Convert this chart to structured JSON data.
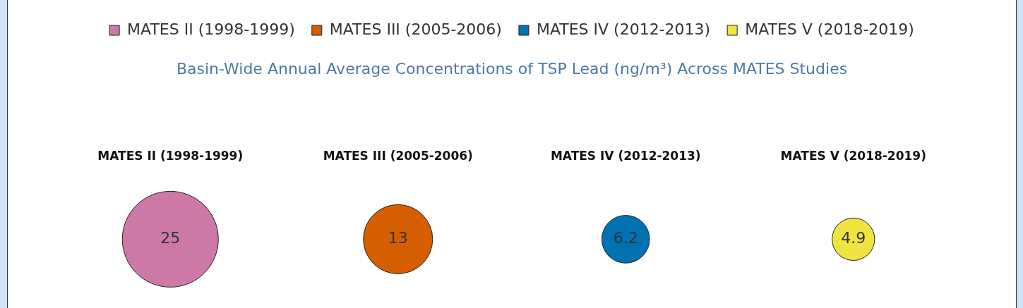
{
  "chart_data": {
    "type": "other",
    "title": "Basin-Wide Annual Average Concentrations of TSP Lead (ng/m³) Across MATES Studies",
    "categories": [
      "MATES II (1998-1999)",
      "MATES III (2005-2006)",
      "MATES IV (2012-2013)",
      "MATES V (2018-2019)"
    ],
    "legend": "top",
    "data_labels": true,
    "series": [
      {
        "name": "MATES II (1998-1999)",
        "color": "#cc79a7",
        "values": [
          25,
          null,
          null,
          null
        ]
      },
      {
        "name": "MATES III (2005-2006)",
        "color": "#d55e00",
        "values": [
          null,
          13,
          null,
          null
        ]
      },
      {
        "name": "MATES IV (2012-2013)",
        "color": "#0072b2",
        "values": [
          null,
          null,
          6.2,
          null
        ]
      },
      {
        "name": "MATES V (2018-2019)",
        "color": "#f0e442",
        "values": [
          null,
          null,
          null,
          4.9
        ]
      }
    ]
  }
}
